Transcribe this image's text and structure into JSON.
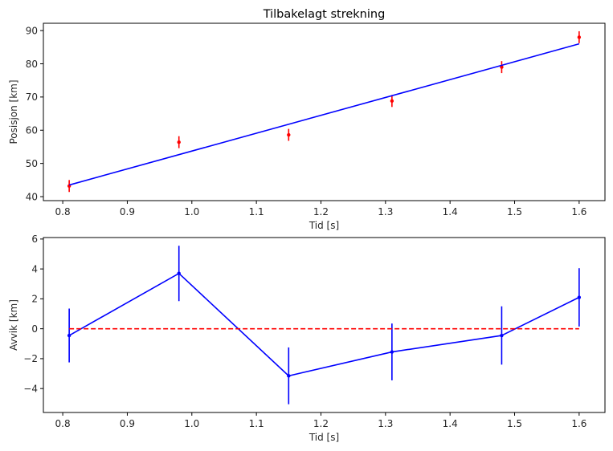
{
  "chart_data": [
    {
      "type": "scatter",
      "title": "Tilbakelagt strekning",
      "xlabel": "Tid [s]",
      "ylabel": "Posisjon [km]",
      "xlim": [
        0.77,
        1.64
      ],
      "ylim": [
        38.8,
        92.2
      ],
      "xticks": [
        0.8,
        0.9,
        1.0,
        1.1,
        1.2,
        1.3,
        1.4,
        1.5,
        1.6
      ],
      "xtick_labels": [
        "0.8",
        "0.9",
        "1.0",
        "1.1",
        "1.2",
        "1.3",
        "1.4",
        "1.5",
        "1.6"
      ],
      "yticks": [
        40,
        50,
        60,
        70,
        80,
        90
      ],
      "ytick_labels": [
        "40",
        "50",
        "60",
        "70",
        "80",
        "90"
      ],
      "grid": false,
      "series": [
        {
          "kind": "errorbar",
          "color": "#ff0000",
          "x": [
            0.81,
            0.98,
            1.15,
            1.31,
            1.48,
            1.6
          ],
          "y": [
            43.2,
            56.4,
            58.6,
            68.8,
            79.0,
            88.0
          ],
          "yerr": [
            1.8,
            1.8,
            1.8,
            1.8,
            1.8,
            1.8
          ]
        },
        {
          "kind": "line",
          "color": "#0000ff",
          "x": [
            0.81,
            1.6
          ],
          "y": [
            43.5,
            86.0
          ]
        }
      ]
    },
    {
      "type": "line",
      "title": "",
      "xlabel": "Tid [s]",
      "ylabel": "Avvik [km]",
      "xlim": [
        0.77,
        1.64
      ],
      "ylim": [
        -5.6,
        6.1
      ],
      "xticks": [
        0.8,
        0.9,
        1.0,
        1.1,
        1.2,
        1.3,
        1.4,
        1.5,
        1.6
      ],
      "xtick_labels": [
        "0.8",
        "0.9",
        "1.0",
        "1.1",
        "1.2",
        "1.3",
        "1.4",
        "1.5",
        "1.6"
      ],
      "yticks": [
        -4,
        -2,
        0,
        2,
        4,
        6
      ],
      "ytick_labels": [
        "−4",
        "−2",
        "0",
        "2",
        "4",
        "6"
      ],
      "grid": false,
      "series": [
        {
          "kind": "errorbar-line",
          "color": "#0000ff",
          "x": [
            0.81,
            0.98,
            1.15,
            1.31,
            1.48,
            1.6
          ],
          "y": [
            -0.45,
            3.7,
            -3.15,
            -1.55,
            -0.45,
            2.1
          ],
          "yerr": [
            1.8,
            1.85,
            1.9,
            1.9,
            1.95,
            1.95
          ]
        },
        {
          "kind": "dashed-line",
          "color": "#ff0000",
          "x": [
            0.81,
            1.6
          ],
          "y": [
            0,
            0
          ]
        }
      ]
    }
  ]
}
